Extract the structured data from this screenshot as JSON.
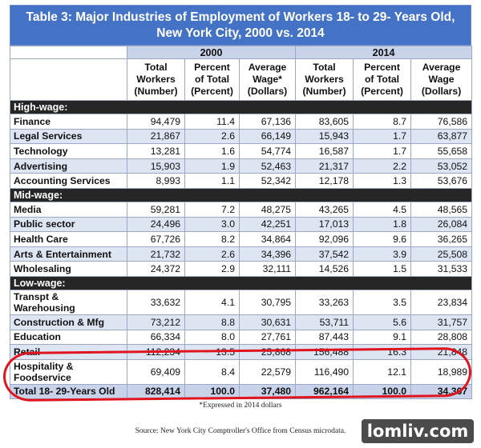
{
  "title_line1": "Table 3: Major Industries of Employment of Workers 18- to 29- Years Old,",
  "title_line2": "New York City,  2000 vs. 2014",
  "years": [
    "2000",
    "2014"
  ],
  "column_headers": [
    [
      "Total",
      "Workers",
      "(Number)"
    ],
    [
      "Percent",
      "of Total",
      "(Percent)"
    ],
    [
      "Average",
      "Wage*",
      "(Dollars)"
    ],
    [
      "Total",
      "Workers",
      "(Number)"
    ],
    [
      "Percent",
      "of Total",
      "(Percent)"
    ],
    [
      "Average",
      "Wage",
      "(Dollars)"
    ]
  ],
  "sections": [
    {
      "label": "High-wage:",
      "rows": [
        {
          "industry": "Finance",
          "values": [
            "94,479",
            "11.4",
            "67,136",
            "83,605",
            "8.7",
            "76,586"
          ]
        },
        {
          "industry": "Legal Services",
          "values": [
            "21,867",
            "2.6",
            "66,149",
            "15,943",
            "1.7",
            "63,877"
          ]
        },
        {
          "industry": "Technology",
          "values": [
            "13,281",
            "1.6",
            "54,774",
            "16,587",
            "1.7",
            "55,658"
          ]
        },
        {
          "industry": "Advertising",
          "values": [
            "15,903",
            "1.9",
            "52,463",
            "21,317",
            "2.2",
            "53,052"
          ]
        },
        {
          "industry": "Accounting Services",
          "values": [
            "8,993",
            "1.1",
            "52,342",
            "12,178",
            "1.3",
            "53,676"
          ]
        }
      ]
    },
    {
      "label": "Mid-wage:",
      "rows": [
        {
          "industry": "Media",
          "values": [
            "59,281",
            "7.2",
            "48,275",
            "43,265",
            "4.5",
            "48,565"
          ]
        },
        {
          "industry": "Public sector",
          "values": [
            "24,496",
            "3.0",
            "42,251",
            "17,013",
            "1.8",
            "26,084"
          ]
        },
        {
          "industry": "Health Care",
          "values": [
            "67,726",
            "8.2",
            "34,864",
            "92,096",
            "9.6",
            "36,265"
          ]
        },
        {
          "industry": "Arts & Entertainment",
          "values": [
            "21,732",
            "2.6",
            "34,396",
            "37,542",
            "3.9",
            "25,508"
          ]
        },
        {
          "industry": "Wholesaling",
          "values": [
            "24,372",
            "2.9",
            "32,111",
            "14,526",
            "1.5",
            "31,533"
          ]
        }
      ]
    },
    {
      "label": "Low-wage:",
      "rows": [
        {
          "industry": "Transpt & Warehousing",
          "line1": "Transpt &",
          "line2": "Warehousing",
          "values": [
            "33,632",
            "4.1",
            "30,795",
            "33,263",
            "3.5",
            "23,834"
          ]
        },
        {
          "industry": "Construction & Mfg",
          "values": [
            "73,212",
            "8.8",
            "30,631",
            "53,711",
            "5.6",
            "31,757"
          ]
        },
        {
          "industry": "Education",
          "values": [
            "66,334",
            "8.0",
            "27,761",
            "87,443",
            "9.1",
            "28,808"
          ]
        },
        {
          "industry": "Retail",
          "values": [
            "112,234",
            "13.5",
            "25,868",
            "156,488",
            "16.3",
            "21,848"
          ]
        },
        {
          "industry": "Hospitality & Foodservice",
          "line1": "Hospitality &",
          "line2": "Foodservice",
          "values": [
            "69,409",
            "8.4",
            "22,579",
            "116,490",
            "12.1",
            "18,989"
          ]
        }
      ]
    }
  ],
  "total": {
    "label": "Total 18- 29-Years Old",
    "values": [
      "828,414",
      "100.0",
      "37,480",
      "962,164",
      "100.0",
      "34,367"
    ]
  },
  "note": "*Expressed in 2014 dollars",
  "source": "Source: New York City Comptroller's Office from Census microdata.",
  "watermark": "lomliv.com",
  "colors": {
    "title_bg": "#4472c4",
    "section_bg": "#262626",
    "alt_row": "#dde4f2",
    "highlight": "#e0141e"
  }
}
